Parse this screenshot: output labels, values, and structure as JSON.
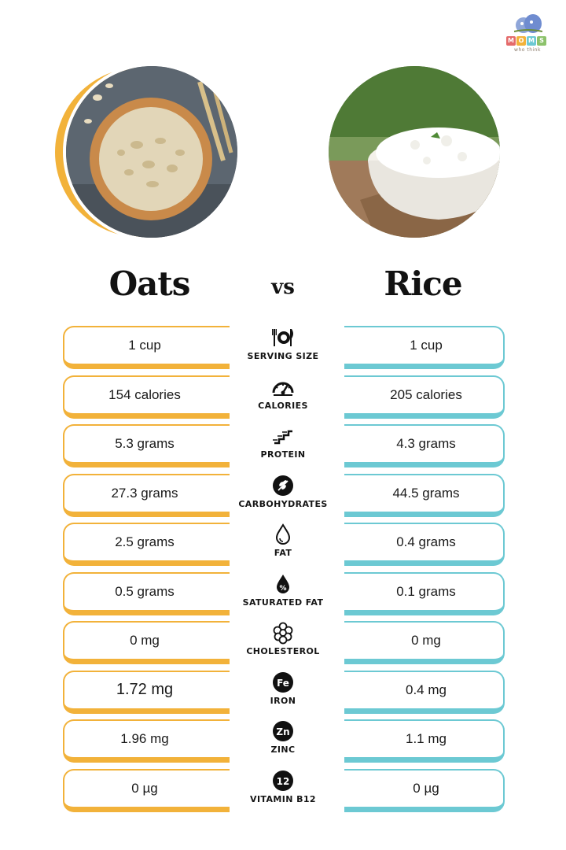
{
  "brand": {
    "logo_letters": [
      "M",
      "O",
      "M",
      "S"
    ],
    "logo_tagline": "who think"
  },
  "headings": {
    "left": "Oats",
    "middle": "vs",
    "right": "Rice"
  },
  "colors": {
    "oats_accent": "#f2b23a",
    "rice_accent": "#6cc9d3"
  },
  "rows": [
    {
      "label": "SERVING SIZE",
      "icon": "fork-plate-knife-icon",
      "oats": "1 cup",
      "rice": "1 cup"
    },
    {
      "label": "CALORIES",
      "icon": "gauge-icon",
      "oats": "154 calories",
      "rice": "205 calories"
    },
    {
      "label": "PROTEIN",
      "icon": "protein-chain-icon",
      "oats": "5.3 grams",
      "rice": "4.3 grams"
    },
    {
      "label": "CARBOHYDRATES",
      "icon": "grain-icon",
      "oats": "27.3 grams",
      "rice": "44.5 grams"
    },
    {
      "label": "FAT",
      "icon": "drop-icon",
      "oats": "2.5 grams",
      "rice": "0.4 grams"
    },
    {
      "label": "SATURATED FAT",
      "icon": "drop-percent-icon",
      "oats": "0.5 grams",
      "rice": "0.1 grams"
    },
    {
      "label": "CHOLESTEROL",
      "icon": "molecule-icon",
      "oats": "0 mg",
      "rice": "0 mg"
    },
    {
      "label": "IRON",
      "icon": "fe-badge-icon",
      "badge": "Fe",
      "oats": "1.72 mg",
      "rice": "0.4 mg"
    },
    {
      "label": "ZINC",
      "icon": "zn-badge-icon",
      "badge": "Zn",
      "oats": "1.96 mg",
      "rice": "1.1 mg"
    },
    {
      "label": "VITAMIN B12",
      "icon": "b12-badge-icon",
      "badge": "12",
      "oats": "0 µg",
      "rice": "0 µg"
    }
  ]
}
